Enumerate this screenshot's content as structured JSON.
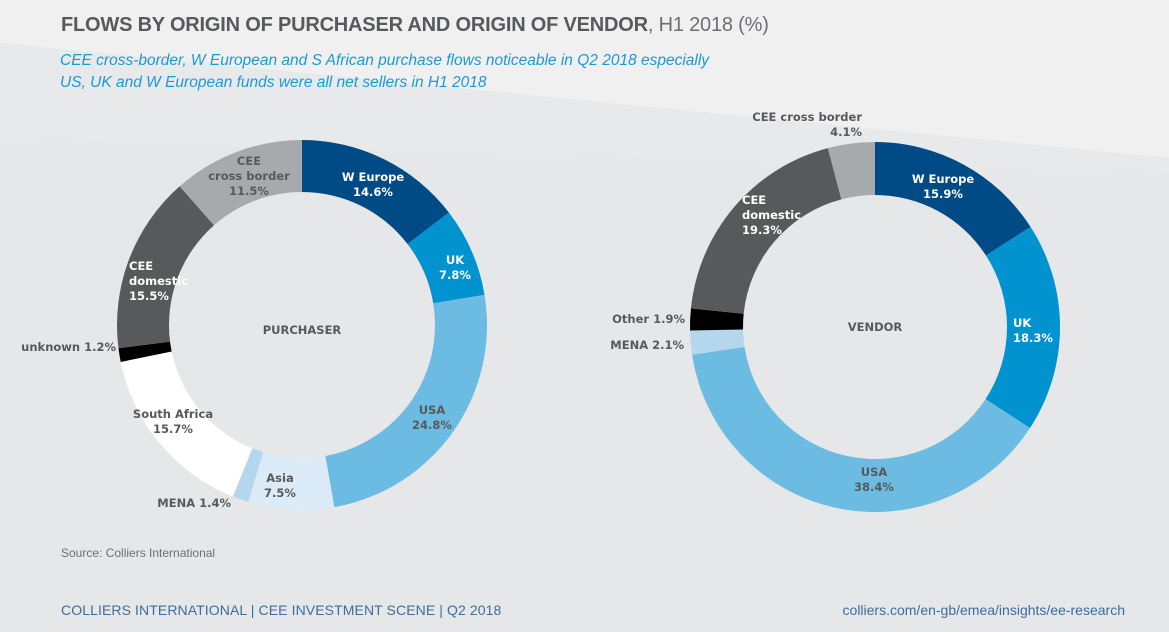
{
  "header": {
    "title_strong": "FLOWS BY ORIGIN OF PURCHASER AND ORIGIN OF VENDOR",
    "title_light": ", H1 2018 (%)",
    "subtitle_lines": [
      "CEE cross-border, W European and S African purchase flows noticeable in Q2 2018 especially",
      "US, UK and W European funds were all net sellers in H1 2018"
    ]
  },
  "colors": {
    "w_europe": "#004a85",
    "uk": "#0093d0",
    "usa": "#6cbbe3",
    "asia": "#dbebf7",
    "mena": "#b5d7ee",
    "south_africa": "#ffffff",
    "unknown": "#000000",
    "other": "#000000",
    "cee_domestic": "#58595b",
    "cee_cross_border": "#a7a9ac",
    "title": "#58595b",
    "subtitle": "#1a9ad6",
    "footer": "#3b6e9e"
  },
  "chart_data": [
    {
      "type": "pie",
      "variant": "donut",
      "title": "PURCHASER",
      "unit": "%",
      "start": "top, clockwise",
      "slices": [
        {
          "label": "W Europe",
          "value": 14.6,
          "value_label": "14.6%",
          "color_key": "w_europe"
        },
        {
          "label": "UK",
          "value": 7.8,
          "value_label": "7.8%",
          "color_key": "uk"
        },
        {
          "label": "USA",
          "value": 24.8,
          "value_label": "24.8%",
          "color_key": "usa"
        },
        {
          "label": "Asia",
          "value": 7.5,
          "value_label": "7.5%",
          "color_key": "asia"
        },
        {
          "label": "MENA",
          "value": 1.4,
          "value_label": "1.4%",
          "color_key": "mena"
        },
        {
          "label": "South Africa",
          "value": 15.7,
          "value_label": "15.7%",
          "color_key": "south_africa"
        },
        {
          "label": "unknown",
          "value": 1.2,
          "value_label": "1.2%",
          "color_key": "unknown"
        },
        {
          "label": "CEE domestic",
          "value": 15.5,
          "value_label": "15.5%",
          "color_key": "cee_domestic"
        },
        {
          "label": "CEE cross border",
          "value": 11.5,
          "value_label": "11.5%",
          "color_key": "cee_cross_border"
        }
      ]
    },
    {
      "type": "pie",
      "variant": "donut",
      "title": "VENDOR",
      "unit": "%",
      "start": "top, clockwise",
      "slices": [
        {
          "label": "W Europe",
          "value": 15.9,
          "value_label": "15.9%",
          "color_key": "w_europe"
        },
        {
          "label": "UK",
          "value": 18.3,
          "value_label": "18.3%",
          "color_key": "uk"
        },
        {
          "label": "USA",
          "value": 38.4,
          "value_label": "38.4%",
          "color_key": "usa"
        },
        {
          "label": "MENA",
          "value": 2.1,
          "value_label": "2.1%",
          "color_key": "mena"
        },
        {
          "label": "Other",
          "value": 1.9,
          "value_label": "1.9%",
          "color_key": "other"
        },
        {
          "label": "CEE domestic",
          "value": 19.3,
          "value_label": "19.3%",
          "color_key": "cee_domestic"
        },
        {
          "label": "CEE cross border",
          "value": 4.1,
          "value_label": "4.1%",
          "color_key": "cee_cross_border"
        }
      ]
    }
  ],
  "footer": {
    "source": "Source: Colliers International",
    "left": "COLLIERS INTERNATIONAL | CEE INVESTMENT SCENE | Q2 2018",
    "right": "colliers.com/en-gb/emea/insights/ee-research"
  }
}
